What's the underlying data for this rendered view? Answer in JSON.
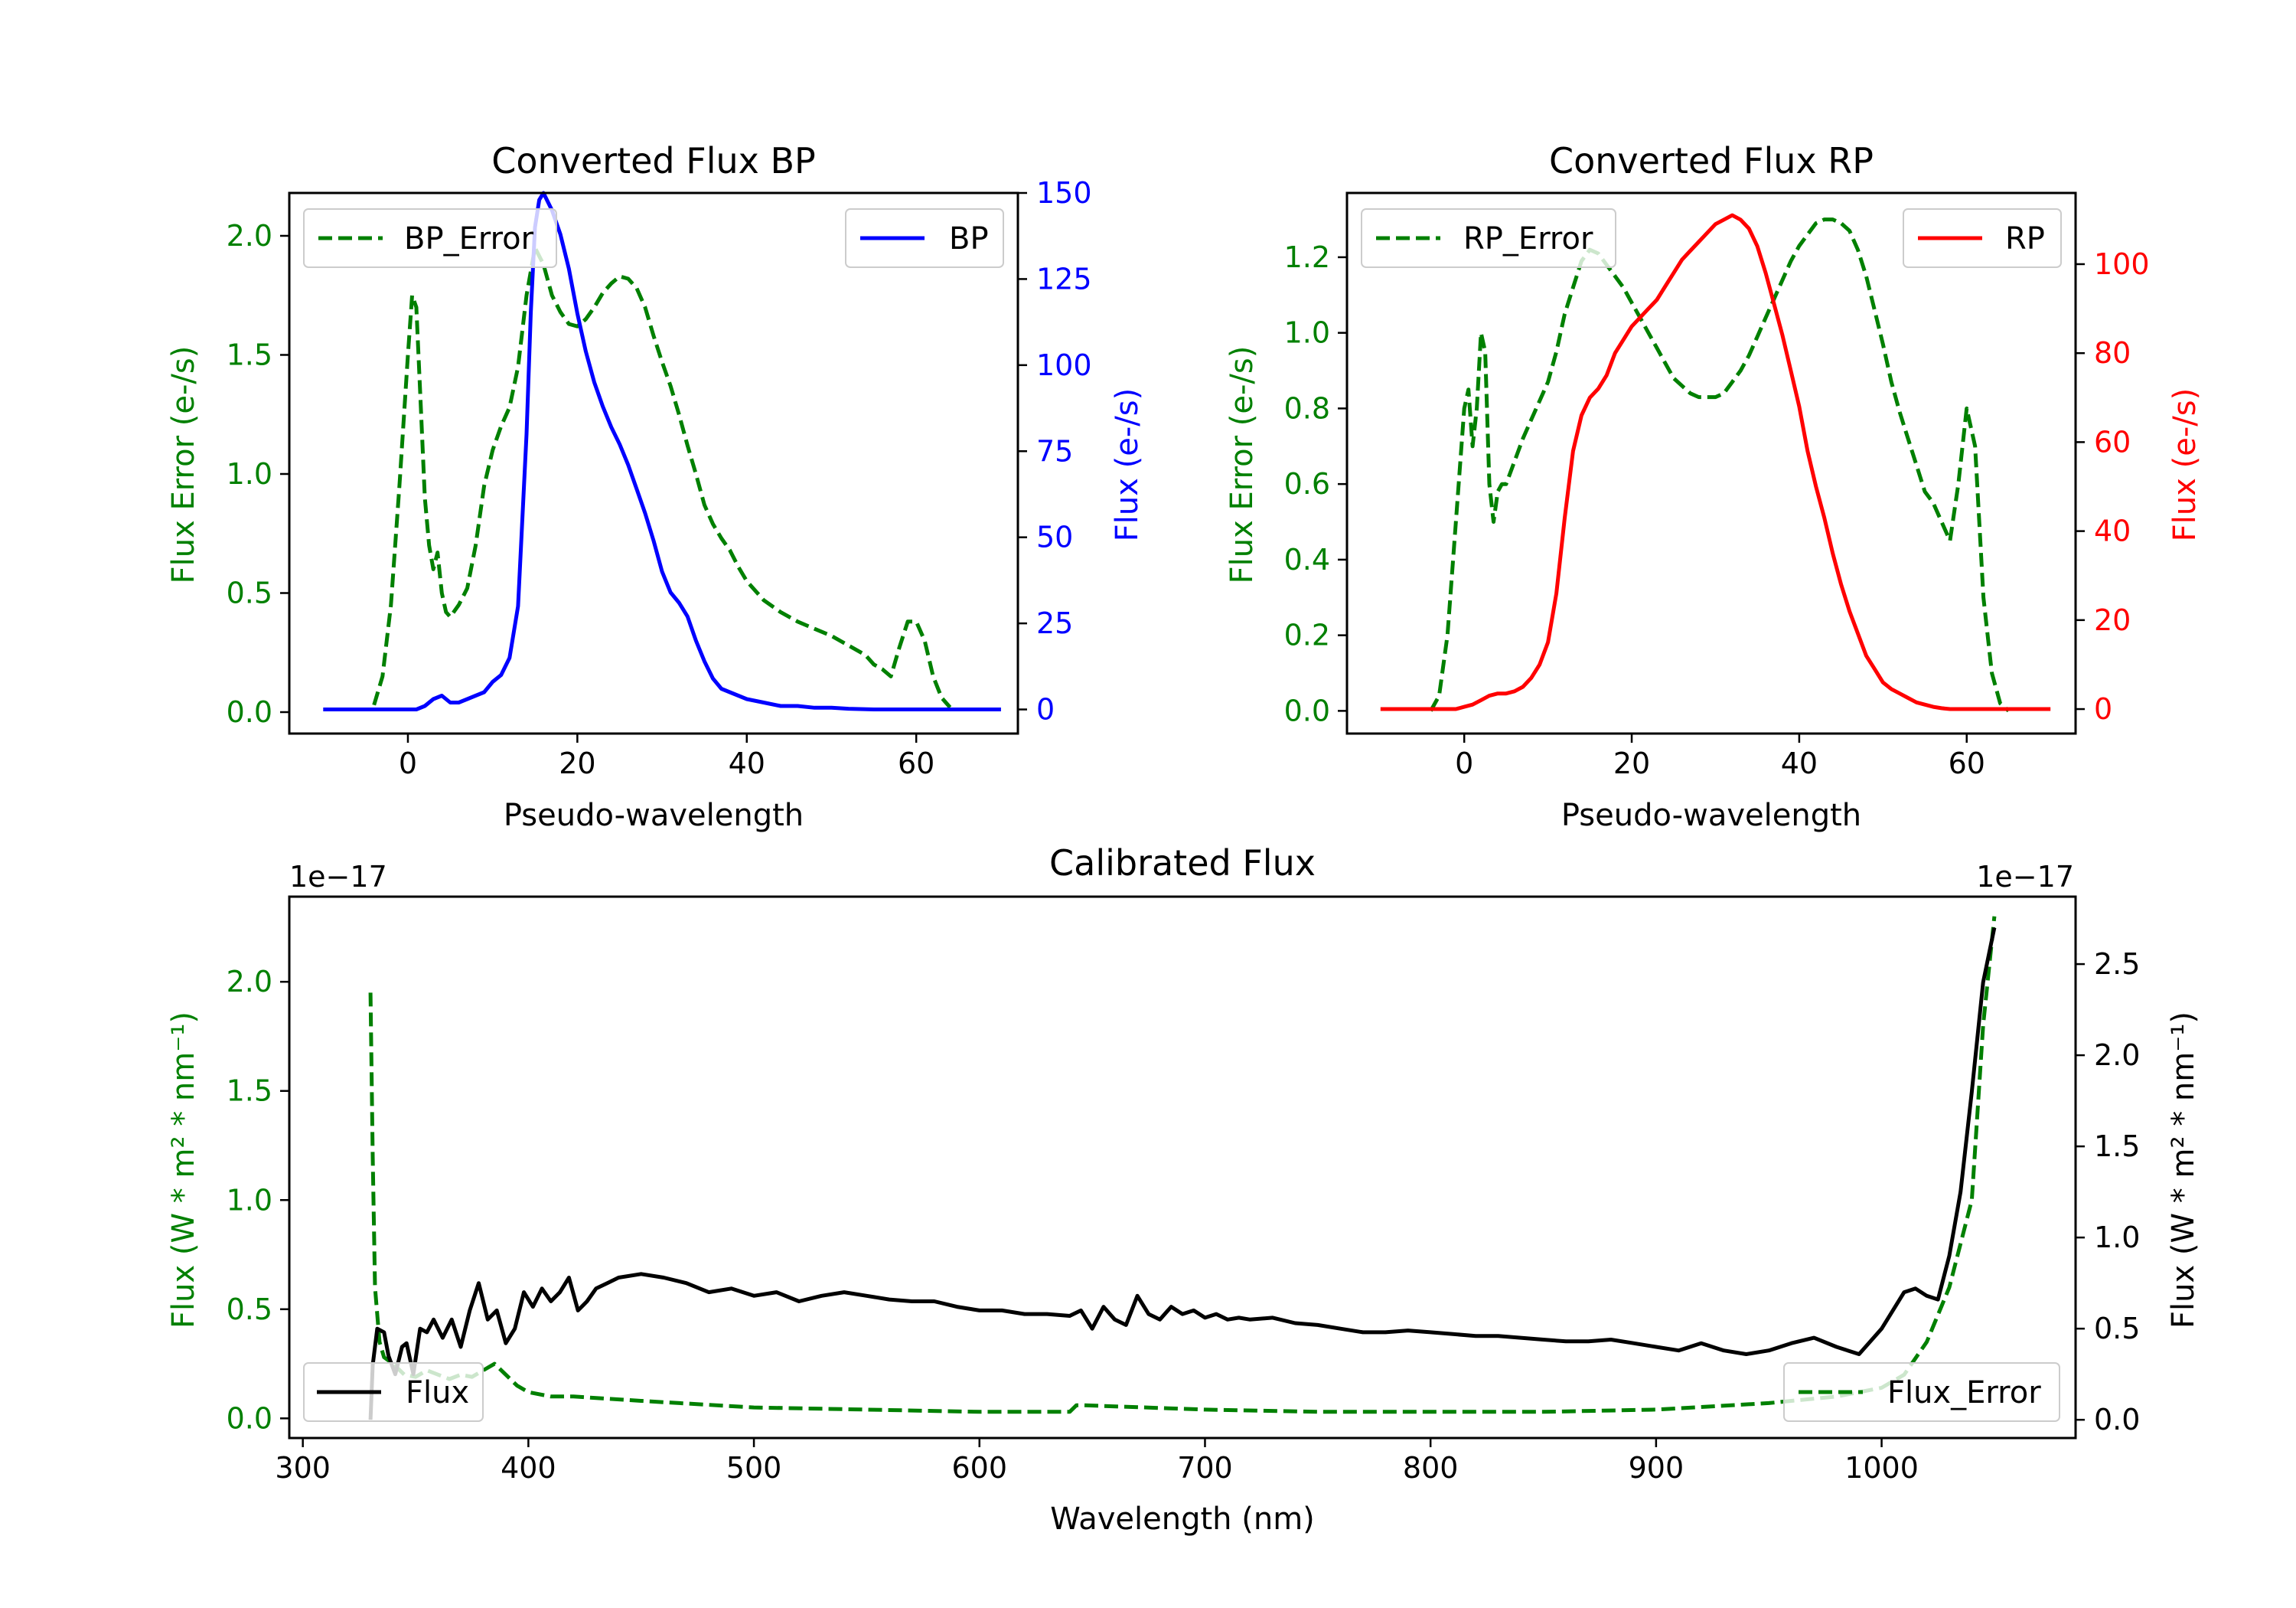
{
  "colors": {
    "green": "#008000",
    "blue": "#0000ff",
    "red": "#ff0000",
    "black": "#000000"
  },
  "chart_data": [
    {
      "id": "bp",
      "type": "line",
      "title": "Converted Flux BP",
      "xlabel": "Pseudo-wavelength",
      "ylabel_left": "Flux Error (e-/s)",
      "ylabel_right": "Flux (e-/s)",
      "xlim": [
        -14,
        72
      ],
      "ylim_left": [
        -0.09,
        2.18
      ],
      "ylim_right": [
        -7,
        150
      ],
      "xticks": [
        0,
        20,
        40,
        60
      ],
      "yticks_left": [
        "0.0",
        "0.5",
        "1.0",
        "1.5",
        "2.0"
      ],
      "yticks_right": [
        "0",
        "25",
        "50",
        "75",
        "100",
        "125",
        "150"
      ],
      "legend_left": "BP_Error",
      "legend_right": "BP",
      "series": [
        {
          "name": "BP_Error",
          "axis": "left",
          "style": "dashed",
          "color": "#008000",
          "x": [
            -4,
            -3,
            -2,
            -1,
            0,
            0.5,
            1,
            1.5,
            2,
            2.5,
            3,
            3.5,
            4,
            4.5,
            5,
            6,
            7,
            8,
            9,
            10,
            11,
            12,
            13,
            14,
            15,
            16,
            17,
            18,
            19,
            20,
            21,
            22,
            23,
            24,
            25,
            26,
            27,
            28,
            29,
            30,
            31,
            32,
            33,
            34,
            35,
            36,
            37,
            38,
            39,
            40,
            42,
            44,
            46,
            48,
            50,
            52,
            54,
            55,
            56,
            57,
            58,
            59,
            60,
            61,
            62,
            63,
            64
          ],
          "y": [
            0.03,
            0.15,
            0.45,
            0.95,
            1.5,
            1.75,
            1.7,
            1.3,
            0.9,
            0.7,
            0.6,
            0.67,
            0.5,
            0.42,
            0.4,
            0.45,
            0.52,
            0.7,
            0.95,
            1.1,
            1.2,
            1.28,
            1.45,
            1.75,
            1.95,
            1.88,
            1.75,
            1.68,
            1.63,
            1.62,
            1.65,
            1.7,
            1.76,
            1.8,
            1.83,
            1.82,
            1.78,
            1.7,
            1.58,
            1.47,
            1.37,
            1.25,
            1.12,
            1.0,
            0.87,
            0.79,
            0.73,
            0.68,
            0.61,
            0.55,
            0.47,
            0.42,
            0.38,
            0.35,
            0.32,
            0.28,
            0.24,
            0.2,
            0.18,
            0.15,
            0.27,
            0.38,
            0.38,
            0.3,
            0.15,
            0.06,
            0.02
          ]
        },
        {
          "name": "BP",
          "axis": "right",
          "style": "solid",
          "color": "#0000ff",
          "x": [
            -10,
            -6,
            -2,
            0,
            1,
            2,
            3,
            4,
            5,
            6,
            7,
            8,
            9,
            10,
            11,
            12,
            13,
            14,
            14.5,
            15,
            15.5,
            16,
            17,
            18,
            19,
            20,
            21,
            22,
            23,
            24,
            25,
            26,
            27,
            28,
            29,
            30,
            31,
            32,
            33,
            34,
            35,
            36,
            37,
            38,
            40,
            42,
            44,
            46,
            48,
            50,
            52,
            55,
            60,
            65,
            70
          ],
          "y": [
            0,
            0,
            0,
            0,
            0,
            1,
            3,
            4,
            2,
            2,
            3,
            4,
            5,
            8,
            10,
            15,
            30,
            80,
            115,
            140,
            148,
            150,
            145,
            138,
            128,
            115,
            104,
            95,
            88,
            82,
            77,
            71,
            64,
            57,
            49,
            40,
            34,
            31,
            27,
            20,
            14,
            9,
            6,
            5,
            3,
            2,
            1,
            1,
            0.5,
            0.5,
            0.2,
            0,
            0,
            0,
            0
          ]
        }
      ]
    },
    {
      "id": "rp",
      "type": "line",
      "title": "Converted Flux RP",
      "xlabel": "Pseudo-wavelength",
      "ylabel_left": "Flux Error (e-/s)",
      "ylabel_right": "Flux (e-/s)",
      "xlim": [
        -14,
        73
      ],
      "ylim_left": [
        -0.06,
        1.37
      ],
      "ylim_right": [
        -5.5,
        116
      ],
      "xticks": [
        0,
        20,
        40,
        60
      ],
      "yticks_left": [
        "0.0",
        "0.2",
        "0.4",
        "0.6",
        "0.8",
        "1.0",
        "1.2"
      ],
      "yticks_right": [
        "0",
        "20",
        "40",
        "60",
        "80",
        "100"
      ],
      "legend_left": "RP_Error",
      "legend_right": "RP",
      "series": [
        {
          "name": "RP_Error",
          "axis": "left",
          "style": "dashed",
          "color": "#008000",
          "x": [
            -4,
            -3,
            -2,
            -1,
            0,
            0.5,
            1,
            1.5,
            2,
            2.5,
            3,
            3.5,
            4,
            4.5,
            5,
            6,
            7,
            8,
            9,
            10,
            11,
            12,
            13,
            14,
            15,
            16,
            17,
            18,
            19,
            20,
            21,
            22,
            23,
            24,
            25,
            26,
            27,
            28,
            29,
            30,
            31,
            32,
            33,
            34,
            35,
            36,
            37,
            38,
            39,
            40,
            41,
            42,
            43,
            44,
            45,
            46,
            47,
            48,
            49,
            50,
            51,
            52,
            53,
            54,
            55,
            56,
            57,
            58,
            59,
            60,
            61,
            62,
            63,
            64,
            65
          ],
          "y": [
            0.0,
            0.04,
            0.2,
            0.5,
            0.8,
            0.85,
            0.7,
            0.8,
            1.0,
            0.95,
            0.6,
            0.5,
            0.58,
            0.6,
            0.6,
            0.66,
            0.72,
            0.77,
            0.82,
            0.87,
            0.95,
            1.05,
            1.12,
            1.19,
            1.22,
            1.21,
            1.18,
            1.15,
            1.12,
            1.08,
            1.04,
            1.0,
            0.96,
            0.92,
            0.88,
            0.86,
            0.84,
            0.83,
            0.83,
            0.83,
            0.84,
            0.87,
            0.9,
            0.94,
            0.99,
            1.04,
            1.09,
            1.14,
            1.19,
            1.23,
            1.26,
            1.29,
            1.3,
            1.3,
            1.29,
            1.27,
            1.22,
            1.15,
            1.06,
            0.97,
            0.87,
            0.79,
            0.72,
            0.65,
            0.58,
            0.55,
            0.5,
            0.45,
            0.6,
            0.8,
            0.7,
            0.3,
            0.1,
            0.02,
            0.0
          ]
        },
        {
          "name": "RP",
          "axis": "right",
          "style": "solid",
          "color": "#ff0000",
          "x": [
            -10,
            -6,
            -3,
            -1,
            0,
            1,
            2,
            3,
            4,
            5,
            6,
            7,
            8,
            9,
            10,
            11,
            12,
            13,
            14,
            15,
            16,
            17,
            18,
            19,
            20,
            21,
            22,
            23,
            24,
            25,
            26,
            27,
            28,
            29,
            30,
            31,
            32,
            33,
            34,
            35,
            36,
            37,
            38,
            39,
            40,
            41,
            42,
            43,
            44,
            45,
            46,
            47,
            48,
            49,
            50,
            51,
            52,
            53,
            54,
            55,
            56,
            57,
            58,
            59,
            60,
            61,
            62,
            65,
            70
          ],
          "y": [
            0,
            0,
            0,
            0,
            0.5,
            1,
            2,
            3,
            3.5,
            3.5,
            4,
            5,
            7,
            10,
            15,
            26,
            43,
            58,
            66,
            70,
            72,
            75,
            80,
            83,
            86,
            88,
            90,
            92,
            95,
            98,
            101,
            103,
            105,
            107,
            109,
            110,
            111,
            110,
            108,
            104,
            98,
            91,
            84,
            76,
            68,
            58,
            50,
            43,
            35,
            28,
            22,
            17,
            12,
            9,
            6,
            4.5,
            3.5,
            2.5,
            1.5,
            1,
            0.5,
            0.2,
            0,
            0,
            0,
            0,
            0,
            0,
            0
          ]
        }
      ]
    },
    {
      "id": "calibrated",
      "type": "line",
      "title": "Calibrated Flux",
      "xlabel": "Wavelength (nm)",
      "ylabel_left": "Flux (W * m² * nm⁻¹)",
      "ylabel_right": "Flux (W * m² * nm⁻¹)",
      "offset_left": "1e−17",
      "offset_right": "1e−17",
      "xlim": [
        294,
        1086
      ],
      "ylim_left": [
        -0.09,
        2.39
      ],
      "ylim_right": [
        -0.1,
        2.87
      ],
      "xticks": [
        300,
        400,
        500,
        600,
        700,
        800,
        900,
        1000
      ],
      "yticks_left": [
        "0.0",
        "0.5",
        "1.0",
        "1.5",
        "2.0"
      ],
      "yticks_right": [
        "0.0",
        "0.5",
        "1.0",
        "1.5",
        "2.0",
        "2.5"
      ],
      "legend_left": "Flux",
      "legend_right": "Flux_Error",
      "series": [
        {
          "name": "Flux_Error",
          "axis": "left",
          "style": "dashed",
          "color": "#008000",
          "x": [
            330,
            331,
            332,
            334,
            336,
            340,
            345,
            350,
            355,
            360,
            365,
            370,
            375,
            380,
            385,
            390,
            395,
            400,
            410,
            420,
            450,
            500,
            550,
            600,
            640,
            643,
            646,
            700,
            750,
            800,
            850,
            900,
            950,
            980,
            1000,
            1010,
            1020,
            1030,
            1040,
            1045,
            1050
          ],
          "y": [
            1.95,
            1.2,
            0.6,
            0.35,
            0.28,
            0.25,
            0.2,
            0.19,
            0.22,
            0.2,
            0.18,
            0.2,
            0.19,
            0.22,
            0.25,
            0.2,
            0.15,
            0.12,
            0.1,
            0.1,
            0.08,
            0.05,
            0.04,
            0.03,
            0.03,
            0.06,
            0.06,
            0.04,
            0.03,
            0.03,
            0.03,
            0.04,
            0.07,
            0.1,
            0.14,
            0.2,
            0.35,
            0.6,
            1.0,
            1.8,
            2.3
          ]
        },
        {
          "name": "Flux",
          "axis": "right",
          "style": "solid",
          "color": "#000000",
          "x": [
            330,
            331,
            333,
            336,
            338,
            341,
            344,
            346,
            349,
            352,
            355,
            358,
            362,
            366,
            370,
            374,
            378,
            382,
            386,
            390,
            394,
            398,
            402,
            406,
            410,
            414,
            418,
            422,
            426,
            430,
            435,
            440,
            450,
            460,
            470,
            480,
            490,
            500,
            510,
            520,
            530,
            540,
            550,
            560,
            570,
            580,
            590,
            600,
            610,
            620,
            630,
            640,
            645,
            650,
            655,
            660,
            665,
            670,
            675,
            680,
            685,
            690,
            695,
            700,
            705,
            710,
            715,
            720,
            730,
            740,
            750,
            760,
            770,
            780,
            790,
            800,
            810,
            820,
            830,
            840,
            850,
            860,
            870,
            880,
            890,
            900,
            910,
            920,
            930,
            940,
            950,
            960,
            970,
            980,
            990,
            1000,
            1010,
            1015,
            1020,
            1025,
            1030,
            1035,
            1040,
            1045,
            1050
          ],
          "y": [
            0.0,
            0.3,
            0.5,
            0.48,
            0.35,
            0.25,
            0.4,
            0.42,
            0.25,
            0.5,
            0.48,
            0.55,
            0.45,
            0.55,
            0.4,
            0.6,
            0.75,
            0.55,
            0.6,
            0.42,
            0.5,
            0.7,
            0.62,
            0.72,
            0.65,
            0.7,
            0.78,
            0.6,
            0.65,
            0.72,
            0.75,
            0.78,
            0.8,
            0.78,
            0.75,
            0.7,
            0.72,
            0.68,
            0.7,
            0.65,
            0.68,
            0.7,
            0.68,
            0.66,
            0.65,
            0.65,
            0.62,
            0.6,
            0.6,
            0.58,
            0.58,
            0.57,
            0.6,
            0.5,
            0.62,
            0.55,
            0.52,
            0.68,
            0.58,
            0.55,
            0.62,
            0.58,
            0.6,
            0.56,
            0.58,
            0.55,
            0.56,
            0.55,
            0.56,
            0.53,
            0.52,
            0.5,
            0.48,
            0.48,
            0.49,
            0.48,
            0.47,
            0.46,
            0.46,
            0.45,
            0.44,
            0.43,
            0.43,
            0.44,
            0.42,
            0.4,
            0.38,
            0.42,
            0.38,
            0.36,
            0.38,
            0.42,
            0.45,
            0.4,
            0.36,
            0.5,
            0.7,
            0.72,
            0.68,
            0.66,
            0.9,
            1.25,
            1.8,
            2.4,
            2.7
          ]
        }
      ]
    }
  ]
}
